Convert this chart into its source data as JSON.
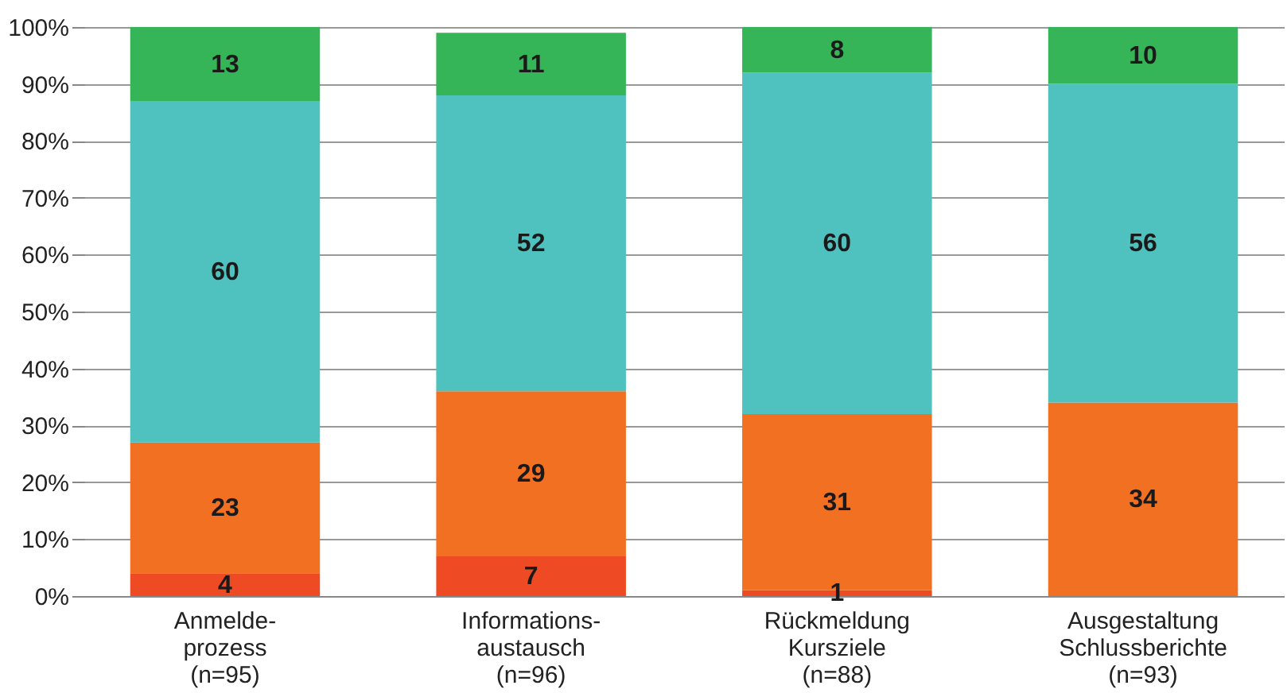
{
  "chart_data": {
    "type": "bar",
    "stacked": true,
    "categories": [
      "Anmelde-\nprozess\n(n=95)",
      "Informations-\naustausch\n(n=96)",
      "Rückmeldung\nKursziele\n(n=88)",
      "Ausgestaltung\nSchlussberichte\n(n=93)"
    ],
    "series": [
      {
        "color": "#ee4a24",
        "values": [
          4,
          7,
          1,
          null
        ]
      },
      {
        "color": "#f27022",
        "values": [
          23,
          29,
          31,
          34
        ]
      },
      {
        "color": "#4fc2bf",
        "values": [
          60,
          52,
          60,
          56
        ]
      },
      {
        "color": "#36b458",
        "values": [
          13,
          11,
          8,
          10
        ]
      }
    ],
    "ylim": [
      0,
      100
    ],
    "yticks": [
      {
        "value": 0,
        "label": "0%"
      },
      {
        "value": 10,
        "label": "10%"
      },
      {
        "value": 20,
        "label": "20%"
      },
      {
        "value": 30,
        "label": "30%"
      },
      {
        "value": 40,
        "label": "40%"
      },
      {
        "value": 50,
        "label": "50%"
      },
      {
        "value": 60,
        "label": "60%"
      },
      {
        "value": 70,
        "label": "70%"
      },
      {
        "value": 80,
        "label": "80%"
      },
      {
        "value": 90,
        "label": "90%"
      },
      {
        "value": 100,
        "label": "100%"
      }
    ],
    "grid": "y",
    "data_labels": true
  }
}
